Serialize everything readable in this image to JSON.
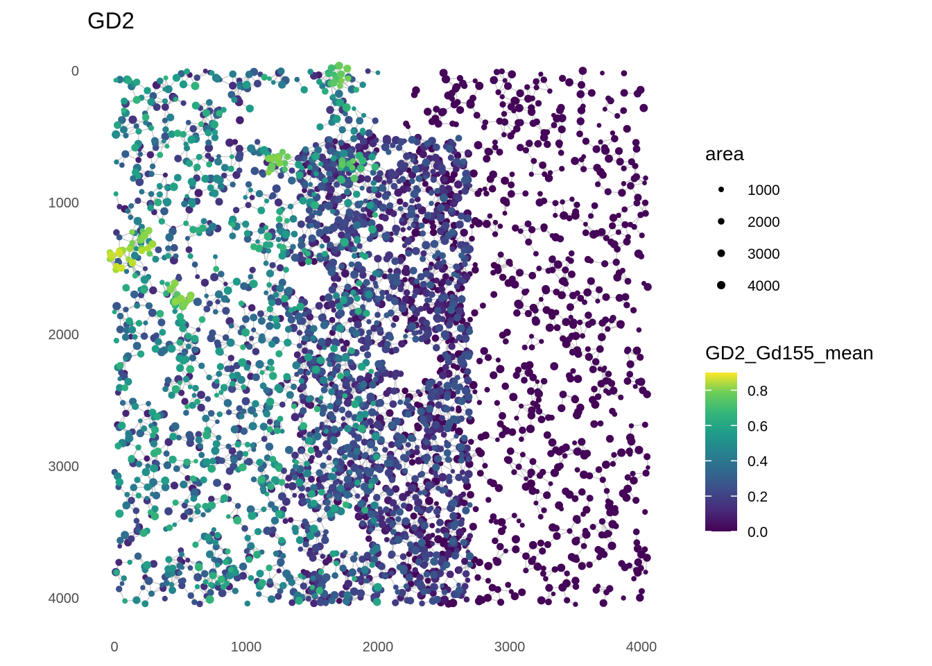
{
  "chart_data": {
    "type": "scatter",
    "title": "GD2",
    "xlabel": "",
    "ylabel": "",
    "xlim": [
      0,
      4050
    ],
    "ylim": [
      0,
      4050
    ],
    "y_reversed": true,
    "x_ticks": [
      "0",
      "1000",
      "2000",
      "3000",
      "4000"
    ],
    "y_ticks": [
      "0",
      "1000",
      "2000",
      "3000",
      "4000"
    ],
    "grid": false,
    "edges_color": "#bdbdbd",
    "color_scale": "viridis",
    "legend_position": "right",
    "size_legend": {
      "title": "area",
      "entries": [
        {
          "label": "1000",
          "value": 1000
        },
        {
          "label": "2000",
          "value": 2000
        },
        {
          "label": "3000",
          "value": 3000
        },
        {
          "label": "4000",
          "value": 4000
        }
      ]
    },
    "color_legend": {
      "title": "GD2_Gd155_mean",
      "range": [
        0,
        0.9
      ],
      "ticks": [
        {
          "label": "0.8",
          "value": 0.8
        },
        {
          "label": "0.6",
          "value": 0.6
        },
        {
          "label": "0.4",
          "value": 0.4
        },
        {
          "label": "0.2",
          "value": 0.2
        },
        {
          "label": "0.0",
          "value": 0.0
        }
      ]
    },
    "regions": [
      {
        "x_range": [
          0,
          2000
        ],
        "y_range": [
          0,
          4050
        ],
        "mean_value": 0.33,
        "density": "high"
      },
      {
        "x_range": [
          1400,
          2700
        ],
        "y_range": [
          500,
          4050
        ],
        "mean_value": 0.15,
        "density": "high"
      },
      {
        "x_range": [
          2200,
          4050
        ],
        "y_range": [
          0,
          4050
        ],
        "mean_value": 0.01,
        "density": "medium"
      }
    ],
    "highlights": [
      {
        "x": 200,
        "y": 1300,
        "value": 0.8
      },
      {
        "x": 50,
        "y": 1450,
        "value": 0.85
      },
      {
        "x": 1250,
        "y": 700,
        "value": 0.75
      },
      {
        "x": 1700,
        "y": 50,
        "value": 0.72
      },
      {
        "x": 500,
        "y": 1700,
        "value": 0.75
      },
      {
        "x": 1800,
        "y": 750,
        "value": 0.7
      }
    ]
  }
}
